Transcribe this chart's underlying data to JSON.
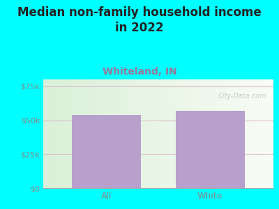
{
  "title_line1": "Median non-family household income",
  "title_line2": "in 2022",
  "subtitle": "Whiteland, IN",
  "categories": [
    "All",
    "White"
  ],
  "values": [
    54000,
    57000
  ],
  "bar_color": "#b8a0cc",
  "background_outer": "#00ffff",
  "background_plot_left": "#daf0d8",
  "background_plot_right": "#f5f9f0",
  "title_fontsize": 12,
  "title_color": "#222222",
  "subtitle_fontsize": 10,
  "subtitle_color": "#997799",
  "tick_label_color": "#888888",
  "ytick_labels": [
    "$0",
    "$25k",
    "$50k",
    "$75k"
  ],
  "ytick_values": [
    0,
    25000,
    50000,
    75000
  ],
  "ylim": [
    0,
    80000
  ],
  "hline_color": "#ddbbcc",
  "watermark": "City-Data.com"
}
